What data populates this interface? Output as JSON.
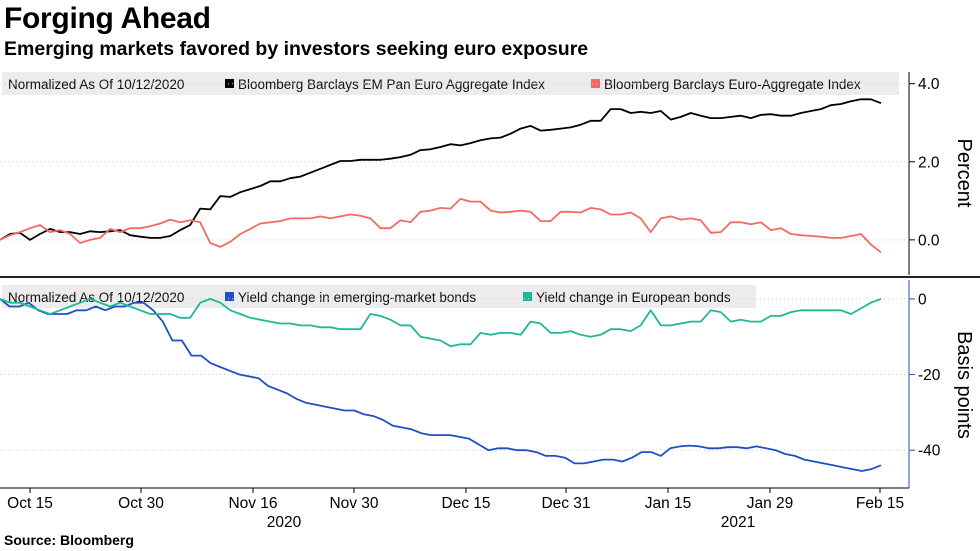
{
  "title": "Forging Ahead",
  "subtitle": "Emerging markets favored by investors seeking euro exposure",
  "source": "Source: Bloomberg",
  "colors": {
    "em_index": "#000000",
    "euro_index": "#f26b62",
    "em_yield": "#1f4fc4",
    "eu_yield": "#1fb896",
    "legend_bg": "#ececec"
  },
  "chart_data": [
    {
      "type": "line",
      "legend_note": "Normalized As Of 10/12/2020",
      "ylabel": "Percent",
      "ylim": [
        -0.9,
        4.3
      ],
      "yticks": [
        4.0,
        2.0,
        0.0
      ],
      "ytick_labels": [
        "4.0",
        "2.0",
        "0.0"
      ],
      "legend_position": "top",
      "series": [
        {
          "name": "Bloomberg Barclays EM Pan Euro Aggregate Index",
          "color": "#000000",
          "values": [
            0.0,
            0.15,
            0.18,
            0.0,
            0.15,
            0.28,
            0.2,
            0.2,
            0.15,
            0.22,
            0.2,
            0.22,
            0.25,
            0.12,
            0.08,
            0.05,
            0.05,
            0.1,
            0.25,
            0.38,
            0.8,
            0.78,
            1.12,
            1.1,
            1.22,
            1.3,
            1.38,
            1.5,
            1.5,
            1.58,
            1.62,
            1.72,
            1.82,
            1.92,
            2.02,
            2.02,
            2.05,
            2.05,
            2.05,
            2.08,
            2.12,
            2.18,
            2.3,
            2.32,
            2.38,
            2.45,
            2.42,
            2.48,
            2.55,
            2.6,
            2.62,
            2.72,
            2.85,
            2.92,
            2.8,
            2.82,
            2.85,
            2.88,
            2.95,
            3.05,
            3.05,
            3.35,
            3.35,
            3.25,
            3.28,
            3.25,
            3.3,
            3.08,
            3.15,
            3.25,
            3.18,
            3.12,
            3.12,
            3.15,
            3.18,
            3.12,
            3.2,
            3.22,
            3.18,
            3.18,
            3.25,
            3.3,
            3.35,
            3.45,
            3.48,
            3.55,
            3.6,
            3.6,
            3.5
          ]
        },
        {
          "name": "Bloomberg Barclays Euro-Aggregate Index",
          "color": "#f26b62",
          "values": [
            0.0,
            0.12,
            0.2,
            0.3,
            0.38,
            0.2,
            0.25,
            0.15,
            -0.08,
            0.0,
            0.05,
            0.28,
            0.2,
            0.3,
            0.3,
            0.35,
            0.42,
            0.52,
            0.45,
            0.5,
            0.45,
            -0.08,
            -0.18,
            -0.05,
            0.15,
            0.28,
            0.42,
            0.45,
            0.48,
            0.55,
            0.55,
            0.55,
            0.6,
            0.55,
            0.6,
            0.65,
            0.62,
            0.55,
            0.3,
            0.3,
            0.5,
            0.45,
            0.72,
            0.75,
            0.82,
            0.8,
            1.05,
            0.98,
            0.98,
            0.75,
            0.7,
            0.72,
            0.75,
            0.72,
            0.48,
            0.48,
            0.72,
            0.72,
            0.7,
            0.82,
            0.78,
            0.65,
            0.65,
            0.7,
            0.55,
            0.2,
            0.55,
            0.6,
            0.52,
            0.55,
            0.5,
            0.18,
            0.2,
            0.45,
            0.45,
            0.4,
            0.45,
            0.25,
            0.3,
            0.15,
            0.12,
            0.1,
            0.08,
            0.05,
            0.05,
            0.1,
            0.15,
            -0.12,
            -0.32
          ]
        }
      ]
    },
    {
      "type": "line",
      "legend_note": "Normalized As Of 10/12/2020",
      "ylabel": "Basis points",
      "ylim": [
        -50,
        5
      ],
      "yticks": [
        0,
        -20,
        -40
      ],
      "ytick_labels": [
        "0",
        "-20",
        "-40"
      ],
      "legend_position": "top",
      "series": [
        {
          "name": "Yield change in emerging-market bonds",
          "color": "#1f4fc4",
          "values": [
            0,
            -2,
            -2,
            -1,
            -3,
            -4,
            -4,
            -4,
            -3,
            -3,
            -2,
            -3,
            -2,
            -2,
            -1,
            -1,
            -3,
            -6,
            -11,
            -11,
            -15,
            -15,
            -17,
            -18,
            -19,
            -20,
            -20.5,
            -21,
            -23,
            -24,
            -25,
            -26.5,
            -27.5,
            -28,
            -28.5,
            -29,
            -29.5,
            -29.5,
            -30.5,
            -31,
            -32,
            -33.5,
            -34,
            -34.5,
            -35.5,
            -36,
            -36,
            -36,
            -36.5,
            -37,
            -38.5,
            -40,
            -39.5,
            -39.5,
            -40,
            -40,
            -40.5,
            -41.5,
            -41.5,
            -42,
            -43.5,
            -43.5,
            -43,
            -42.5,
            -42.5,
            -43,
            -42,
            -40.5,
            -40.5,
            -41.5,
            -39.5,
            -39,
            -38.8,
            -39,
            -39.5,
            -39.5,
            -39.2,
            -39.2,
            -39.5,
            -39,
            -39.5,
            -40,
            -41,
            -41.5,
            -42.5,
            -43,
            -43.5,
            -44,
            -44.5,
            -45,
            -45.5,
            -45,
            -44
          ]
        },
        {
          "name": "Yield change in European bonds",
          "color": "#1fb896",
          "values": [
            0,
            -1,
            -1,
            -2,
            -3,
            -4,
            -3,
            -2,
            -1,
            0,
            -1,
            -2,
            -1,
            -2,
            -3,
            -4,
            -4,
            -4,
            -5,
            -5,
            -1,
            0,
            -1,
            -3,
            -4,
            -5,
            -5.5,
            -6,
            -6.5,
            -6.5,
            -7,
            -7,
            -7.5,
            -7.5,
            -8,
            -8,
            -8,
            -4,
            -4.5,
            -5.5,
            -7,
            -7,
            -10,
            -10.5,
            -11,
            -12.5,
            -12,
            -12,
            -9,
            -9.5,
            -9,
            -9,
            -9.5,
            -6,
            -6.5,
            -9,
            -9,
            -8.5,
            -9.5,
            -10,
            -9.5,
            -8,
            -8,
            -8.5,
            -7,
            -3,
            -7,
            -7,
            -6.5,
            -6,
            -6,
            -3,
            -3.5,
            -6,
            -5.5,
            -6,
            -6,
            -4.5,
            -4.5,
            -3.5,
            -3,
            -3,
            -3,
            -3,
            -3,
            -4,
            -2.5,
            -1,
            0
          ]
        }
      ]
    }
  ],
  "x_axis": {
    "tick_labels": [
      "Oct 15",
      "Oct 30",
      "Nov 16",
      "Nov 30",
      "Dec 15",
      "Dec 31",
      "Jan 15",
      "Jan 29",
      "Feb 15"
    ],
    "year_labels": [
      "2020",
      "2021"
    ]
  }
}
